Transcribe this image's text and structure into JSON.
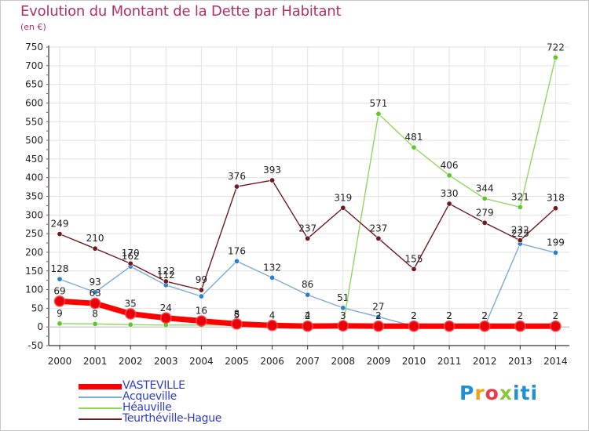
{
  "chart_data": {
    "type": "line",
    "title": "Evolution du Montant de la Dette par Habitant",
    "unit_label": "(en €)",
    "x": [
      "2000",
      "2001",
      "2002",
      "2003",
      "2004",
      "2005",
      "2006",
      "2007",
      "2008",
      "2009",
      "2010",
      "2011",
      "2012",
      "2013",
      "2014"
    ],
    "ylim": [
      -50,
      750
    ],
    "yticks": [
      -50,
      0,
      50,
      100,
      150,
      200,
      250,
      300,
      350,
      400,
      450,
      500,
      550,
      600,
      650,
      700,
      750
    ],
    "grid": true,
    "legend_position": "bottom-left",
    "series": [
      {
        "name": "VASTEVILLE",
        "color": "#ff0000",
        "marker_color": "#e8000b",
        "values": [
          69,
          63,
          35,
          24,
          16,
          8,
          4,
          2,
          3,
          2,
          2,
          2,
          2,
          2,
          2
        ],
        "labels": [
          "69",
          "63",
          "35",
          "24",
          "16",
          "8",
          "4",
          "2",
          "3",
          "2",
          "2",
          "2",
          "2",
          "2",
          "2"
        ]
      },
      {
        "name": "Acqueville",
        "color": "#7aaad8",
        "marker_color": "#2f7fc8",
        "values": [
          128,
          93,
          162,
          112,
          82,
          176,
          132,
          86,
          51,
          27,
          2,
          2,
          2,
          223,
          199
        ],
        "labels": [
          "128",
          "93",
          "162",
          "112",
          "",
          "176",
          "132",
          "86",
          "51",
          "27",
          "2",
          "2",
          "2",
          "223",
          "199"
        ]
      },
      {
        "name": "Héauville",
        "color": "#8fd860",
        "marker_color": "#5cc82a",
        "values": [
          9,
          8,
          6,
          5,
          5,
          5,
          4,
          4,
          3,
          571,
          481,
          406,
          344,
          321,
          722
        ],
        "labels": [
          "9",
          "8",
          "",
          "",
          "",
          "5",
          "",
          "4",
          "",
          "571",
          "481",
          "406",
          "344",
          "321",
          "722"
        ]
      },
      {
        "name": "Teurthéville-Hague",
        "color": "#6e1a22",
        "marker_color": "#6e1a22",
        "values": [
          249,
          210,
          170,
          122,
          99,
          376,
          393,
          237,
          319,
          237,
          155,
          330,
          279,
          232,
          318
        ],
        "labels": [
          "249",
          "210",
          "170",
          "122",
          "99",
          "376",
          "393",
          "237",
          "319",
          "237",
          "155",
          "330",
          "279",
          "232",
          "318"
        ]
      }
    ]
  },
  "logo": {
    "text": "Proxiti"
  }
}
